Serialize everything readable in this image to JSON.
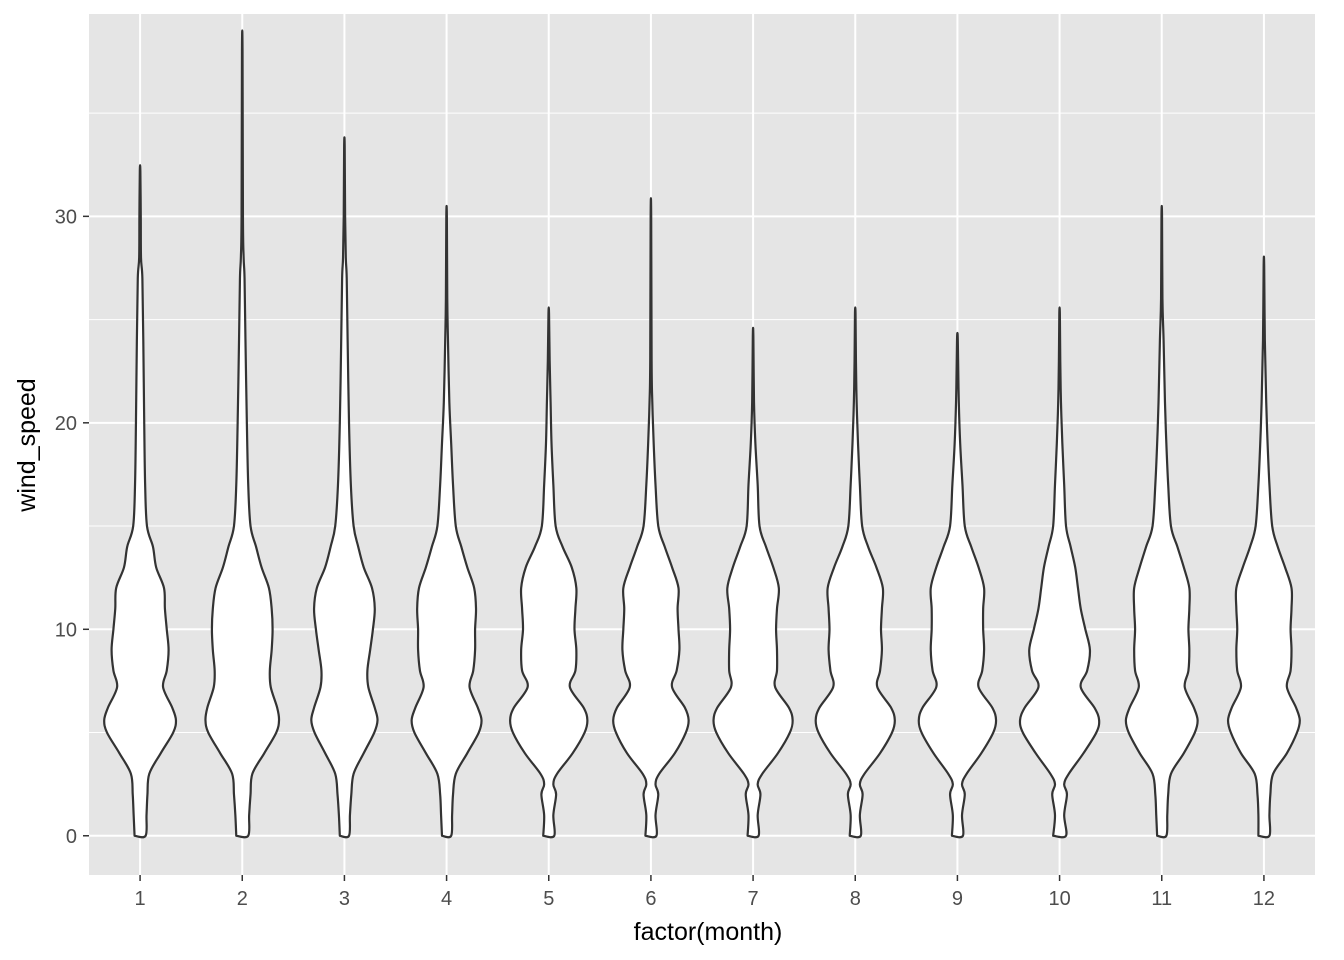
{
  "chart_data": {
    "type": "violin",
    "xlabel": "factor(month)",
    "ylabel": "wind_speed",
    "categories": [
      "1",
      "2",
      "3",
      "4",
      "5",
      "6",
      "7",
      "8",
      "9",
      "10",
      "11",
      "12"
    ],
    "ylim": [
      -1.9,
      39.8
    ],
    "y_ticks": [
      0,
      10,
      20,
      30
    ],
    "grid": true,
    "colors": {
      "panel": "#e5e5e5",
      "grid": "#ffffff",
      "fill": "#ffffff",
      "outline": "#333333",
      "text": "#4d4d4d"
    },
    "series": [
      {
        "category": "1",
        "max": 32.2,
        "profile": [
          [
            0,
            0.12
          ],
          [
            1,
            0.14
          ],
          [
            2,
            0.16
          ],
          [
            3,
            0.2
          ],
          [
            4,
            0.45
          ],
          [
            5,
            0.72
          ],
          [
            5.6,
            0.78
          ],
          [
            6.2,
            0.7
          ],
          [
            7.2,
            0.5
          ],
          [
            8,
            0.58
          ],
          [
            9,
            0.62
          ],
          [
            10,
            0.58
          ],
          [
            11,
            0.54
          ],
          [
            12,
            0.52
          ],
          [
            13,
            0.35
          ],
          [
            14,
            0.28
          ],
          [
            15,
            0.15
          ],
          [
            17,
            0.11
          ],
          [
            20,
            0.09
          ],
          [
            24,
            0.07
          ],
          [
            27,
            0.05
          ],
          [
            28,
            0.02
          ],
          [
            30,
            0.015
          ]
        ]
      },
      {
        "category": "2",
        "max": 38.0,
        "profile": [
          [
            0,
            0.13
          ],
          [
            1,
            0.15
          ],
          [
            2,
            0.18
          ],
          [
            3,
            0.22
          ],
          [
            4,
            0.48
          ],
          [
            5,
            0.74
          ],
          [
            5.6,
            0.8
          ],
          [
            6.2,
            0.76
          ],
          [
            7.2,
            0.62
          ],
          [
            8,
            0.6
          ],
          [
            9,
            0.64
          ],
          [
            10,
            0.66
          ],
          [
            11,
            0.64
          ],
          [
            12,
            0.58
          ],
          [
            13,
            0.42
          ],
          [
            14,
            0.3
          ],
          [
            15,
            0.18
          ],
          [
            17,
            0.13
          ],
          [
            20,
            0.1
          ],
          [
            24,
            0.07
          ],
          [
            27,
            0.05
          ],
          [
            28,
            0.03
          ],
          [
            30,
            0.015
          ]
        ]
      },
      {
        "category": "3",
        "max": 33.4,
        "profile": [
          [
            0,
            0.1
          ],
          [
            1,
            0.12
          ],
          [
            2,
            0.15
          ],
          [
            3,
            0.2
          ],
          [
            4,
            0.42
          ],
          [
            5,
            0.65
          ],
          [
            5.6,
            0.72
          ],
          [
            6.2,
            0.66
          ],
          [
            7.2,
            0.52
          ],
          [
            8,
            0.5
          ],
          [
            9,
            0.56
          ],
          [
            10,
            0.62
          ],
          [
            11,
            0.66
          ],
          [
            12,
            0.6
          ],
          [
            13,
            0.42
          ],
          [
            14,
            0.3
          ],
          [
            15,
            0.2
          ],
          [
            17,
            0.14
          ],
          [
            20,
            0.1
          ],
          [
            24,
            0.07
          ],
          [
            27,
            0.05
          ],
          [
            28,
            0.03
          ],
          [
            30,
            0.015
          ]
        ]
      },
      {
        "category": "4",
        "max": 30.0,
        "profile": [
          [
            0,
            0.1
          ],
          [
            1,
            0.12
          ],
          [
            2,
            0.14
          ],
          [
            3,
            0.2
          ],
          [
            4,
            0.45
          ],
          [
            5,
            0.7
          ],
          [
            5.6,
            0.76
          ],
          [
            6.2,
            0.68
          ],
          [
            7.2,
            0.5
          ],
          [
            8,
            0.58
          ],
          [
            9,
            0.62
          ],
          [
            10,
            0.62
          ],
          [
            11,
            0.64
          ],
          [
            12,
            0.6
          ],
          [
            13,
            0.45
          ],
          [
            14,
            0.32
          ],
          [
            15,
            0.2
          ],
          [
            17,
            0.14
          ],
          [
            19,
            0.1
          ],
          [
            21,
            0.06
          ],
          [
            24,
            0.03
          ],
          [
            26,
            0.015
          ]
        ]
      },
      {
        "category": "5",
        "max": 25.3,
        "profile": [
          [
            0,
            0.12
          ],
          [
            1,
            0.1
          ],
          [
            2,
            0.16
          ],
          [
            2.5,
            0.1
          ],
          [
            3,
            0.18
          ],
          [
            4,
            0.52
          ],
          [
            5,
            0.78
          ],
          [
            5.6,
            0.84
          ],
          [
            6.2,
            0.76
          ],
          [
            7.2,
            0.46
          ],
          [
            8,
            0.58
          ],
          [
            9,
            0.6
          ],
          [
            10,
            0.56
          ],
          [
            11,
            0.58
          ],
          [
            12,
            0.6
          ],
          [
            13,
            0.5
          ],
          [
            14,
            0.3
          ],
          [
            15,
            0.15
          ],
          [
            17,
            0.1
          ],
          [
            19,
            0.06
          ],
          [
            21,
            0.04
          ],
          [
            23,
            0.02
          ]
        ]
      },
      {
        "category": "6",
        "max": 30.0,
        "profile": [
          [
            0,
            0.12
          ],
          [
            1,
            0.1
          ],
          [
            2,
            0.16
          ],
          [
            2.5,
            0.1
          ],
          [
            3,
            0.18
          ],
          [
            4,
            0.52
          ],
          [
            5,
            0.76
          ],
          [
            5.6,
            0.82
          ],
          [
            6.2,
            0.74
          ],
          [
            7.2,
            0.46
          ],
          [
            8,
            0.56
          ],
          [
            9,
            0.62
          ],
          [
            10,
            0.6
          ],
          [
            11,
            0.58
          ],
          [
            12,
            0.6
          ],
          [
            13,
            0.46
          ],
          [
            14,
            0.3
          ],
          [
            15,
            0.16
          ],
          [
            17,
            0.1
          ],
          [
            19,
            0.06
          ],
          [
            21,
            0.03
          ],
          [
            23,
            0.015
          ]
        ]
      },
      {
        "category": "7",
        "max": 24.2,
        "profile": [
          [
            0,
            0.12
          ],
          [
            1,
            0.1
          ],
          [
            2,
            0.16
          ],
          [
            2.5,
            0.1
          ],
          [
            3,
            0.2
          ],
          [
            4,
            0.54
          ],
          [
            5,
            0.8
          ],
          [
            5.6,
            0.86
          ],
          [
            6.2,
            0.78
          ],
          [
            7.2,
            0.48
          ],
          [
            8,
            0.52
          ],
          [
            9,
            0.52
          ],
          [
            10,
            0.5
          ],
          [
            11,
            0.52
          ],
          [
            12,
            0.56
          ],
          [
            13,
            0.44
          ],
          [
            14,
            0.28
          ],
          [
            15,
            0.14
          ],
          [
            17,
            0.1
          ],
          [
            19,
            0.05
          ],
          [
            21,
            0.02
          ]
        ]
      },
      {
        "category": "8",
        "max": 25.3,
        "profile": [
          [
            0,
            0.12
          ],
          [
            1,
            0.1
          ],
          [
            2,
            0.16
          ],
          [
            2.5,
            0.1
          ],
          [
            3,
            0.2
          ],
          [
            4,
            0.54
          ],
          [
            5,
            0.8
          ],
          [
            5.6,
            0.86
          ],
          [
            6.2,
            0.78
          ],
          [
            7.2,
            0.48
          ],
          [
            8,
            0.54
          ],
          [
            9,
            0.58
          ],
          [
            10,
            0.56
          ],
          [
            11,
            0.58
          ],
          [
            12,
            0.6
          ],
          [
            13,
            0.46
          ],
          [
            14,
            0.28
          ],
          [
            15,
            0.15
          ],
          [
            17,
            0.1
          ],
          [
            19,
            0.06
          ],
          [
            21,
            0.03
          ],
          [
            23,
            0.015
          ]
        ]
      },
      {
        "category": "9",
        "max": 24.2,
        "profile": [
          [
            0,
            0.12
          ],
          [
            1,
            0.1
          ],
          [
            2,
            0.16
          ],
          [
            2.5,
            0.1
          ],
          [
            3,
            0.2
          ],
          [
            4,
            0.52
          ],
          [
            5,
            0.78
          ],
          [
            5.6,
            0.84
          ],
          [
            6.2,
            0.76
          ],
          [
            7.2,
            0.46
          ],
          [
            8,
            0.54
          ],
          [
            9,
            0.58
          ],
          [
            10,
            0.56
          ],
          [
            11,
            0.56
          ],
          [
            12,
            0.58
          ],
          [
            13,
            0.46
          ],
          [
            14,
            0.3
          ],
          [
            15,
            0.16
          ],
          [
            17,
            0.11
          ],
          [
            19,
            0.06
          ],
          [
            21,
            0.03
          ],
          [
            23,
            0.015
          ]
        ]
      },
      {
        "category": "10",
        "max": 25.3,
        "profile": [
          [
            0,
            0.14
          ],
          [
            1,
            0.1
          ],
          [
            2,
            0.16
          ],
          [
            2.5,
            0.1
          ],
          [
            3,
            0.2
          ],
          [
            4,
            0.52
          ],
          [
            5,
            0.8
          ],
          [
            5.6,
            0.86
          ],
          [
            6.2,
            0.76
          ],
          [
            7.2,
            0.46
          ],
          [
            8,
            0.6
          ],
          [
            9,
            0.66
          ],
          [
            10,
            0.56
          ],
          [
            11,
            0.46
          ],
          [
            12,
            0.4
          ],
          [
            13,
            0.34
          ],
          [
            14,
            0.24
          ],
          [
            15,
            0.14
          ],
          [
            17,
            0.1
          ],
          [
            19,
            0.06
          ],
          [
            21,
            0.03
          ],
          [
            23,
            0.015
          ]
        ]
      },
      {
        "category": "11",
        "max": 30.0,
        "profile": [
          [
            0,
            0.1
          ],
          [
            1,
            0.12
          ],
          [
            2,
            0.14
          ],
          [
            3,
            0.2
          ],
          [
            4,
            0.48
          ],
          [
            5,
            0.72
          ],
          [
            5.6,
            0.78
          ],
          [
            6.2,
            0.7
          ],
          [
            7.2,
            0.5
          ],
          [
            8,
            0.58
          ],
          [
            9,
            0.6
          ],
          [
            10,
            0.58
          ],
          [
            11,
            0.6
          ],
          [
            12,
            0.6
          ],
          [
            13,
            0.48
          ],
          [
            14,
            0.34
          ],
          [
            15,
            0.2
          ],
          [
            17,
            0.14
          ],
          [
            19,
            0.1
          ],
          [
            21,
            0.07
          ],
          [
            24,
            0.04
          ],
          [
            26,
            0.015
          ]
        ]
      },
      {
        "category": "12",
        "max": 27.6,
        "profile": [
          [
            0,
            0.12
          ],
          [
            1,
            0.12
          ],
          [
            2,
            0.14
          ],
          [
            3,
            0.2
          ],
          [
            4,
            0.5
          ],
          [
            5,
            0.72
          ],
          [
            5.6,
            0.78
          ],
          [
            6.2,
            0.7
          ],
          [
            7.2,
            0.5
          ],
          [
            8,
            0.58
          ],
          [
            9,
            0.6
          ],
          [
            10,
            0.58
          ],
          [
            11,
            0.6
          ],
          [
            12,
            0.6
          ],
          [
            13,
            0.46
          ],
          [
            14,
            0.3
          ],
          [
            15,
            0.18
          ],
          [
            17,
            0.12
          ],
          [
            19,
            0.08
          ],
          [
            21,
            0.05
          ],
          [
            24,
            0.02
          ]
        ]
      }
    ]
  }
}
